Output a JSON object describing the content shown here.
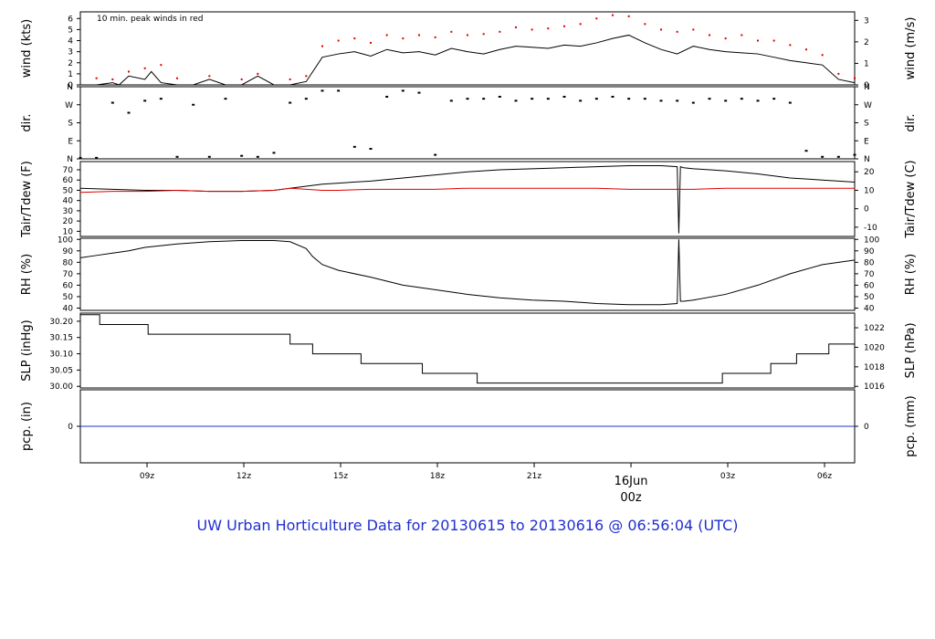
{
  "footer_title": "UW Urban Horticulture Data for 20130615  to  20130616 @ 06:56:04  (UTC)",
  "colors": {
    "black": "#000000",
    "red": "#dd0000",
    "blue": "#1f2fd1"
  },
  "chart_data": {
    "type": "line",
    "time_axis": {
      "range_utc": [
        "2013-06-15 06:56",
        "2013-06-16 06:56"
      ],
      "ticks": [
        {
          "time": "2013-06-15 09:00",
          "label": "09z"
        },
        {
          "time": "2013-06-15 12:00",
          "label": "12z"
        },
        {
          "time": "2013-06-15 15:00",
          "label": "15z"
        },
        {
          "time": "2013-06-15 18:00",
          "label": "18z"
        },
        {
          "time": "2013-06-15 21:00",
          "label": "21z"
        },
        {
          "time": "2013-06-16 03:00",
          "label": "03z"
        },
        {
          "time": "2013-06-16 06:00",
          "label": "06z"
        }
      ],
      "day_marker": {
        "time": "2013-06-16 00:00",
        "date_label": "16Jun",
        "hour_label": "00z",
        "color": "#dd0000"
      }
    },
    "panels": [
      {
        "id": "wind",
        "ylabel": "wind (kts)",
        "ylabel_right": "wind (m/s)",
        "ylim": [
          0,
          6.6
        ],
        "ticks_left": [
          "0",
          "1",
          "2",
          "3",
          "4",
          "5",
          "6"
        ],
        "ticks_right": [
          {
            "value": 0,
            "label": "0"
          },
          {
            "value": 1.944,
            "label": "1"
          },
          {
            "value": 3.888,
            "label": "2"
          },
          {
            "value": 5.832,
            "label": "3"
          }
        ],
        "annotation": "10 min. peak winds in red",
        "series": [
          {
            "role": "speed",
            "color": "#000000",
            "x": [
              0,
              0.5,
              1,
              1.2,
              1.5,
              2,
              2.2,
              2.5,
              3,
              3.5,
              4,
              4.5,
              5,
              5.5,
              6,
              6.5,
              7,
              7.5,
              8,
              8.5,
              9,
              9.5,
              10,
              10.5,
              11,
              11.5,
              12,
              12.5,
              13,
              13.5,
              14,
              14.5,
              15,
              15.5,
              16,
              16.5,
              17,
              17.5,
              18,
              18.5,
              19,
              19.5,
              20,
              20.5,
              21,
              21.5,
              22,
              22.5,
              23,
              23.5,
              24
            ],
            "y": [
              0,
              0,
              0.2,
              0,
              0.8,
              0.5,
              1.2,
              0.2,
              0,
              0,
              0.5,
              0,
              0,
              0.8,
              0,
              0,
              0.3,
              2.5,
              2.8,
              3,
              2.6,
              3.2,
              2.9,
              3,
              2.7,
              3.3,
              3,
              2.8,
              3.2,
              3.5,
              3.4,
              3.3,
              3.6,
              3.5,
              3.8,
              4.2,
              4.5,
              3.8,
              3.2,
              2.8,
              3.5,
              3.2,
              3,
              2.9,
              2.8,
              2.5,
              2.2,
              2,
              1.8,
              0.5,
              0.2
            ]
          },
          {
            "role": "peak",
            "color": "#dd0000",
            "x": [
              0.5,
              1,
              1.5,
              2,
              2.5,
              3,
              4,
              5,
              5.5,
              6.5,
              7,
              7.5,
              8,
              8.5,
              9,
              9.5,
              10,
              10.5,
              11,
              11.5,
              12,
              12.5,
              13,
              13.5,
              14,
              14.5,
              15,
              15.5,
              16,
              16.5,
              17,
              17.5,
              18,
              18.5,
              19,
              19.5,
              20,
              20.5,
              21,
              21.5,
              22,
              22.5,
              23,
              23.5,
              24
            ],
            "y": [
              0.6,
              0.5,
              1.2,
              1.5,
              1.8,
              0.6,
              0.8,
              0.5,
              1,
              0.5,
              0.8,
              3.5,
              4,
              4.2,
              3.8,
              4.5,
              4.2,
              4.5,
              4.3,
              4.8,
              4.5,
              4.6,
              4.8,
              5.2,
              5,
              5.1,
              5.3,
              5.5,
              6,
              6.3,
              6.2,
              5.5,
              5,
              4.8,
              5,
              4.5,
              4.2,
              4.5,
              4,
              4,
              3.6,
              3.2,
              2.7,
              1,
              0.6
            ]
          }
        ]
      },
      {
        "id": "dir",
        "ylabel": "dir.",
        "ylabel_right": "dir.",
        "ylim": [
          0,
          360
        ],
        "ticks_left": [
          "N",
          "E",
          "S",
          "W",
          "N"
        ],
        "ticks_right": [
          "N",
          "E",
          "S",
          "W",
          "N"
        ],
        "series": [
          {
            "role": "direction_deg",
            "color": "#000000",
            "x": [
              0,
              0.5,
              1,
              1.5,
              2,
              2.5,
              3,
              3.5,
              4,
              4.5,
              5,
              5.5,
              6,
              6.5,
              7,
              7.5,
              8,
              8.5,
              9,
              9.5,
              10,
              10.5,
              11,
              11.5,
              12,
              12.5,
              13,
              13.5,
              14,
              14.5,
              15,
              15.5,
              16,
              16.5,
              17,
              17.5,
              18,
              18.5,
              19,
              19.5,
              20,
              20.5,
              21,
              21.5,
              22,
              22.5,
              23,
              23.5,
              24
            ],
            "y": [
              5,
              5,
              280,
              230,
              290,
              300,
              10,
              270,
              10,
              300,
              15,
              10,
              30,
              280,
              300,
              340,
              340,
              60,
              50,
              310,
              340,
              330,
              20,
              290,
              300,
              300,
              310,
              290,
              300,
              300,
              310,
              290,
              300,
              310,
              300,
              300,
              290,
              290,
              280,
              300,
              290,
              300,
              290,
              300,
              280,
              40,
              10,
              10,
              20
            ]
          }
        ]
      },
      {
        "id": "temp",
        "ylabel": "Tair/Tdew (F)",
        "ylabel_right": "Tair/Tdew (C)",
        "ylim": [
          5,
          78
        ],
        "ticks_left": [
          "10",
          "20",
          "30",
          "40",
          "50",
          "60",
          "70"
        ],
        "ticks_right": [
          {
            "value": 14,
            "label": "-10"
          },
          {
            "value": 32,
            "label": "0"
          },
          {
            "value": 50,
            "label": "10"
          },
          {
            "value": 68,
            "label": "20"
          }
        ],
        "series": [
          {
            "role": "Tair",
            "color": "#000000",
            "x": [
              0,
              1,
              2,
              3,
              4,
              5,
              6,
              6.5,
              7,
              7.5,
              8,
              9,
              10,
              11,
              12,
              13,
              14,
              15,
              16,
              17,
              18,
              18.5,
              18.55,
              18.6,
              18.7,
              19,
              20,
              21,
              22,
              23,
              24
            ],
            "y": [
              52,
              51,
              50,
              50,
              49,
              49,
              50,
              52,
              54,
              56,
              57,
              59,
              62,
              65,
              68,
              70,
              71,
              72,
              73,
              74,
              74,
              73,
              8,
              73,
              72,
              71,
              69,
              66,
              62,
              60,
              58
            ]
          },
          {
            "role": "Tdew",
            "color": "#dd0000",
            "x": [
              0,
              1,
              2,
              3,
              4,
              5,
              6,
              6.5,
              7,
              7.5,
              8,
              9,
              10,
              11,
              12,
              13,
              14,
              15,
              16,
              17,
              18,
              19,
              20,
              21,
              22,
              23,
              24
            ],
            "y": [
              48,
              49,
              49,
              50,
              49,
              49,
              50,
              52,
              51,
              50,
              50,
              51,
              51,
              51,
              52,
              52,
              52,
              52,
              52,
              51,
              51,
              51,
              52,
              52,
              52,
              52,
              52
            ]
          }
        ]
      },
      {
        "id": "rh",
        "ylabel": "RH (%)",
        "ylabel_right": "RH (%)",
        "ylim": [
          38,
          101
        ],
        "ticks_left": [
          "40",
          "50",
          "60",
          "70",
          "80",
          "90",
          "100"
        ],
        "ticks_right": [
          "40",
          "50",
          "60",
          "70",
          "80",
          "90",
          "100"
        ],
        "series": [
          {
            "role": "RH",
            "color": "#000000",
            "x": [
              0,
              0.5,
              1,
              1.5,
              2,
              3,
              4,
              5,
              6,
              6.5,
              7,
              7.2,
              7.5,
              8,
              9,
              10,
              11,
              12,
              13,
              14,
              15,
              16,
              17,
              18,
              18.5,
              18.55,
              18.6,
              18.7,
              19,
              20,
              21,
              22,
              23,
              24
            ],
            "y": [
              84,
              86,
              88,
              90,
              93,
              96,
              98,
              99,
              99,
              98,
              92,
              85,
              78,
              73,
              67,
              60,
              56,
              52,
              49,
              47,
              46,
              44,
              43,
              43,
              44,
              100,
              46,
              46,
              47,
              52,
              60,
              70,
              78,
              82
            ]
          }
        ]
      },
      {
        "id": "slp",
        "ylabel": "SLP (inHg)",
        "ylabel_right": "SLP (hPa)",
        "ylim": [
          29.995,
          30.225
        ],
        "ticks_left": [
          "30.00",
          "30.05",
          "30.10",
          "30.15",
          "30.20"
        ],
        "ticks_right": [
          {
            "value": 30.0,
            "label": "1016"
          },
          {
            "value": 30.06,
            "label": "1018"
          },
          {
            "value": 30.12,
            "label": "1020"
          },
          {
            "value": 30.18,
            "label": "1022"
          }
        ],
        "series": [
          {
            "role": "SLP",
            "color": "#000000",
            "step": true,
            "x": [
              0,
              0.6,
              2.1,
              6.5,
              7.2,
              8.7,
              10.6,
              12.3,
              19.9,
              21.4,
              22.2,
              23.2,
              24
            ],
            "y": [
              30.22,
              30.19,
              30.16,
              30.13,
              30.1,
              30.07,
              30.04,
              30.01,
              30.04,
              30.07,
              30.1,
              30.13,
              30.13
            ]
          }
        ]
      },
      {
        "id": "pcp",
        "ylabel": "pcp. (in)",
        "ylabel_right": "pcp. (mm)",
        "ylim": [
          -1,
          1
        ],
        "ticks_left": [
          "0"
        ],
        "ticks_right": [
          "0"
        ],
        "series": [
          {
            "role": "precip",
            "color": "#1f2fd1",
            "x": [
              0,
              24
            ],
            "y": [
              0,
              0
            ]
          }
        ]
      }
    ]
  }
}
